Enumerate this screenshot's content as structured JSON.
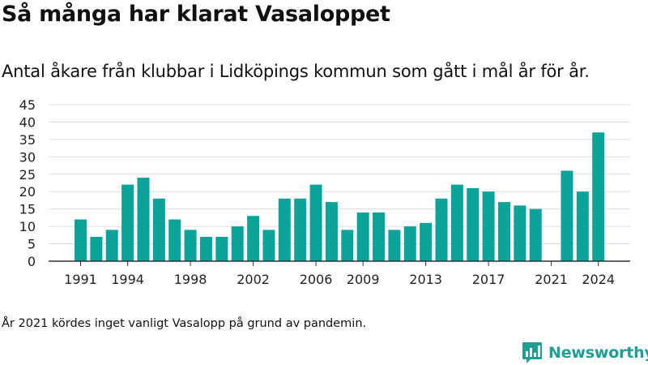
{
  "header": {
    "title": "Så många har klarat Vasaloppet",
    "subtitle": "Antal åkare från klubbar i Lidköpings kommun som gått i mål år för år."
  },
  "footer": {
    "footnote": "År 2021 kördes inget vanligt Vasalopp på grund av pandemin.",
    "brand": "Newsworthy"
  },
  "colors": {
    "bar": "#0aa39a",
    "grid": "#dddddd",
    "axis": "#333333",
    "brand": "#1f9e93"
  },
  "chart_data": {
    "type": "bar",
    "x": [
      1991,
      1992,
      1993,
      1994,
      1995,
      1996,
      1997,
      1998,
      1999,
      2000,
      2001,
      2002,
      2003,
      2004,
      2005,
      2006,
      2007,
      2008,
      2009,
      2010,
      2011,
      2012,
      2013,
      2014,
      2015,
      2016,
      2017,
      2018,
      2019,
      2020,
      2021,
      2022,
      2023,
      2024
    ],
    "values": [
      12,
      7,
      9,
      22,
      24,
      18,
      12,
      9,
      7,
      7,
      10,
      13,
      9,
      18,
      18,
      22,
      17,
      9,
      14,
      14,
      9,
      10,
      11,
      18,
      22,
      21,
      20,
      17,
      16,
      15,
      0,
      26,
      20,
      37
    ],
    "x_tick_labels": [
      1991,
      1994,
      1998,
      2002,
      2006,
      2009,
      2013,
      2017,
      2021,
      2024
    ],
    "y_ticks": [
      0,
      5,
      10,
      15,
      20,
      25,
      30,
      35,
      40,
      45
    ],
    "ylim": [
      0,
      45
    ],
    "grid": true,
    "legend": "none"
  }
}
